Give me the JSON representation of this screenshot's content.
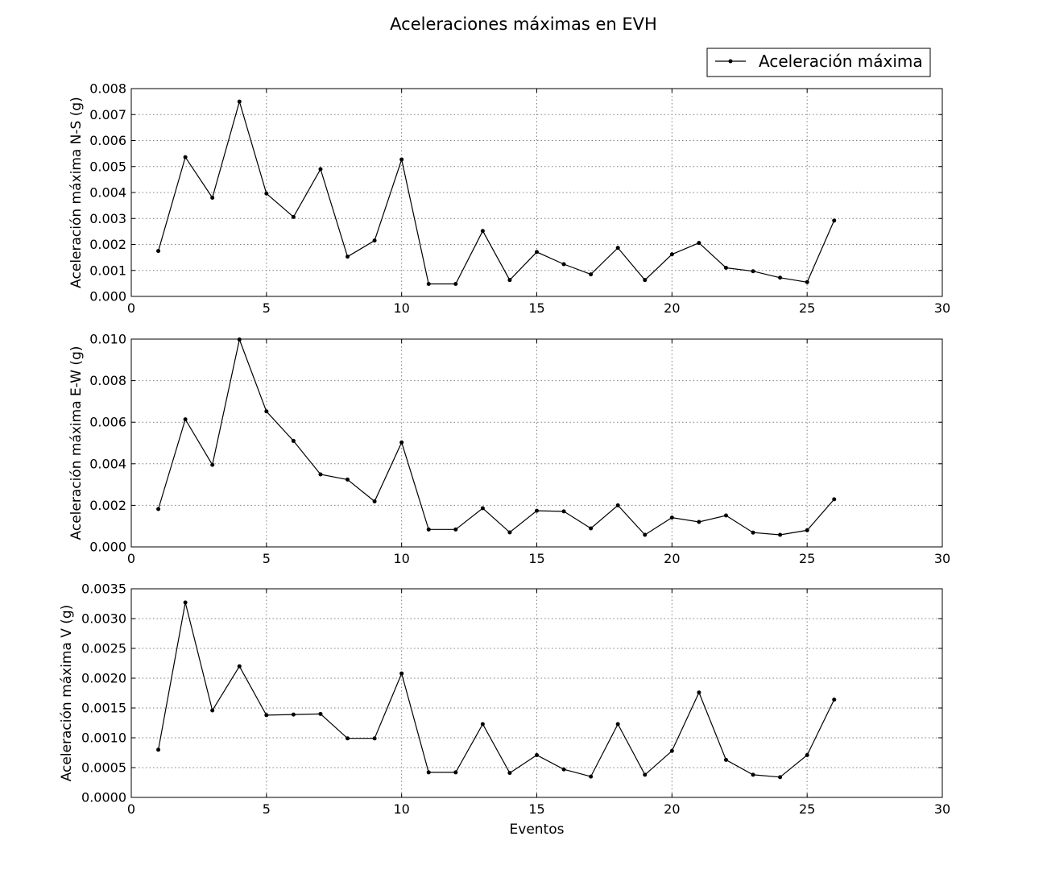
{
  "figure": {
    "title": "Aceleraciones máximas en EVH",
    "legend_label": "Aceleración máxima",
    "legend_position": "top-right",
    "line_color": "#000000",
    "grid_color": "#808080"
  },
  "chart_data": [
    {
      "type": "line",
      "title": "",
      "xlabel": "",
      "ylabel": "Aceleración máxima N-S (g)",
      "xlim": [
        0,
        30
      ],
      "ylim": [
        0,
        0.008
      ],
      "grid": true,
      "xticks": [
        "0",
        "5",
        "10",
        "15",
        "20",
        "25",
        "30"
      ],
      "xtick_values": [
        0,
        5,
        10,
        15,
        20,
        25,
        30
      ],
      "yticks": [
        "0.000",
        "0.001",
        "0.002",
        "0.003",
        "0.004",
        "0.005",
        "0.006",
        "0.007",
        "0.008"
      ],
      "ytick_values": [
        0,
        0.001,
        0.002,
        0.003,
        0.004,
        0.005,
        0.006,
        0.007,
        0.008
      ],
      "series": [
        {
          "name": "Aceleración máxima",
          "x": [
            1,
            2,
            3,
            4,
            5,
            6,
            7,
            8,
            9,
            10,
            11,
            12,
            13,
            14,
            15,
            16,
            17,
            18,
            19,
            20,
            21,
            22,
            23,
            24,
            25,
            26
          ],
          "y": [
            0.00175,
            0.00536,
            0.0038,
            0.0075,
            0.00396,
            0.00306,
            0.0049,
            0.00153,
            0.00215,
            0.00527,
            0.00048,
            0.00048,
            0.00252,
            0.00063,
            0.00171,
            0.00124,
            0.00085,
            0.00187,
            0.00063,
            0.00162,
            0.00206,
            0.0011,
            0.00097,
            0.00072,
            0.00055,
            0.00292
          ]
        }
      ]
    },
    {
      "type": "line",
      "title": "",
      "xlabel": "",
      "ylabel": "Aceleración máxima E-W (g)",
      "xlim": [
        0,
        30
      ],
      "ylim": [
        0,
        0.01
      ],
      "grid": true,
      "xticks": [
        "0",
        "5",
        "10",
        "15",
        "20",
        "25",
        "30"
      ],
      "xtick_values": [
        0,
        5,
        10,
        15,
        20,
        25,
        30
      ],
      "yticks": [
        "0.000",
        "0.002",
        "0.004",
        "0.006",
        "0.008",
        "0.010"
      ],
      "ytick_values": [
        0,
        0.002,
        0.004,
        0.006,
        0.008,
        0.01
      ],
      "series": [
        {
          "name": "Aceleración máxima",
          "x": [
            1,
            2,
            3,
            4,
            5,
            6,
            7,
            8,
            9,
            10,
            11,
            12,
            13,
            14,
            15,
            16,
            17,
            18,
            19,
            20,
            21,
            22,
            23,
            24,
            25,
            26
          ],
          "y": [
            0.00182,
            0.00614,
            0.00395,
            0.00998,
            0.00652,
            0.0051,
            0.00349,
            0.00324,
            0.00219,
            0.00503,
            0.00084,
            0.00084,
            0.00186,
            0.0007,
            0.00174,
            0.00171,
            0.00089,
            0.002,
            0.00058,
            0.00141,
            0.0012,
            0.00151,
            0.00069,
            0.00058,
            0.0008,
            0.00229
          ]
        }
      ]
    },
    {
      "type": "line",
      "title": "",
      "xlabel": "Eventos",
      "ylabel": "Aceleración máxima V (g)",
      "xlim": [
        0,
        30
      ],
      "ylim": [
        0,
        0.0035
      ],
      "grid": true,
      "xticks": [
        "0",
        "5",
        "10",
        "15",
        "20",
        "25",
        "30"
      ],
      "xtick_values": [
        0,
        5,
        10,
        15,
        20,
        25,
        30
      ],
      "yticks": [
        "0.0000",
        "0.0005",
        "0.0010",
        "0.0015",
        "0.0020",
        "0.0025",
        "0.0030",
        "0.0035"
      ],
      "ytick_values": [
        0,
        0.0005,
        0.001,
        0.0015,
        0.002,
        0.0025,
        0.003,
        0.0035
      ],
      "series": [
        {
          "name": "Aceleración máxima",
          "x": [
            1,
            2,
            3,
            4,
            5,
            6,
            7,
            8,
            9,
            10,
            11,
            12,
            13,
            14,
            15,
            16,
            17,
            18,
            19,
            20,
            21,
            22,
            23,
            24,
            25,
            26
          ],
          "y": [
            0.0008,
            0.00327,
            0.00146,
            0.0022,
            0.00138,
            0.00139,
            0.0014,
            0.00099,
            0.00099,
            0.00208,
            0.00042,
            0.00042,
            0.00123,
            0.00041,
            0.00071,
            0.00047,
            0.00035,
            0.00123,
            0.00038,
            0.00078,
            0.00176,
            0.00063,
            0.00038,
            0.00034,
            0.00071,
            0.00164
          ]
        }
      ]
    }
  ]
}
